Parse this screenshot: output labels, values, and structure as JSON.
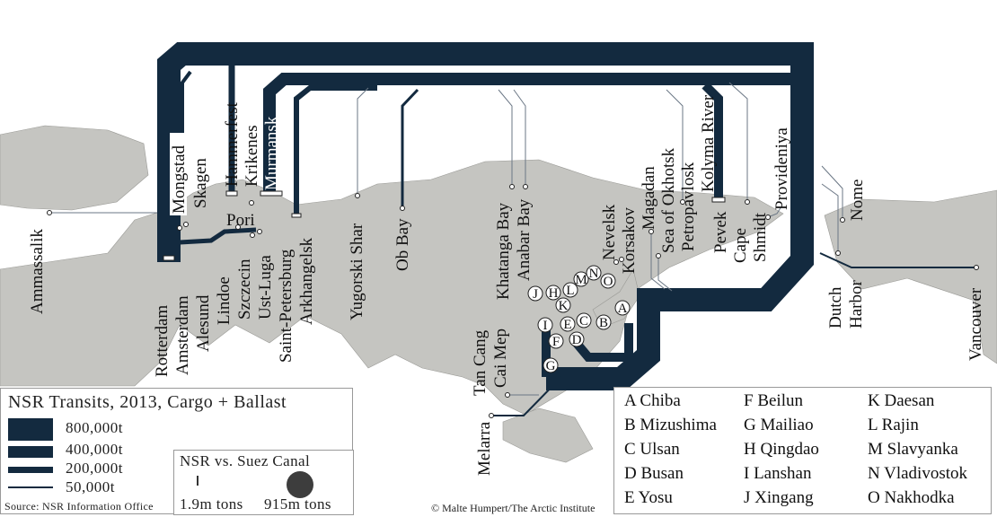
{
  "colors": {
    "flow": "#132a3f",
    "land": "#c5c5c1",
    "suez_circle": "#3d3d3d"
  },
  "ports": {
    "ammassalik": "Ammassalik",
    "rotterdam": "Rotterdam",
    "amsterdam": "Amsterdam",
    "alesund": "Alesund",
    "lindoe": "Lindoe",
    "szczecin": "Szczecin",
    "ust_luga": "Ust-Luga",
    "saint_petersburg": "Saint-Petersburg",
    "arkhangelsk": "Arkhangelsk",
    "pori": "Pori",
    "mongstad": "Mongstad",
    "skagen": "Skagen",
    "hammerfest": "Hammerfest",
    "krikenes": "Krikenes",
    "murmansk": "Murmansk",
    "yugorski_shar": "Yugorski Shar",
    "ob_bay": "Ob Bay",
    "khatanga_bay": "Khatanga Bay",
    "anabar_bay": "Anabar Bay",
    "tan_cang": "Tan Cang",
    "cai_mep": "Cai Mep",
    "melarra": "Melarra",
    "nevelsk": "Nevelsk",
    "korsakov": "Korsakov",
    "magadan": "Magadan",
    "sea_of_okhotsk": "Sea of Okhotsk",
    "petropavlosk": "Petropavlosk",
    "kolyma_river": "Kolyma River",
    "pevek": "Pevek",
    "cape": "Cape",
    "shmidt": "Shmidt",
    "provideniya": "Provideniya",
    "nome": "Nome",
    "dutch": "Dutch",
    "harbor": "Harbor",
    "vancouver": "Vancouver"
  },
  "markers": [
    "A",
    "B",
    "C",
    "D",
    "E",
    "F",
    "G",
    "H",
    "I",
    "J",
    "K",
    "L",
    "M",
    "N",
    "O"
  ],
  "legend": {
    "title": "NSR Transits, 2013, Cargo + Ballast",
    "entries": [
      "800,000t",
      "400,000t",
      "200,000t",
      "50,000t"
    ],
    "source": "Source: NSR Information Office",
    "comparison": {
      "title": "NSR vs. Suez Canal",
      "nsr_value": "1.9m tons",
      "suez_value": "915m tons"
    }
  },
  "key": [
    "A Chiba",
    "B Mizushima",
    "C Ulsan",
    "D Busan",
    "E Yosu",
    "F Beilun",
    "G Mailiao",
    "H Qingdao",
    "I Lanshan",
    "J Xingang",
    "K Daesan",
    "L Rajin",
    "M Slavyanka",
    "N Vladivostok",
    "O Nakhodka"
  ],
  "credit": "© Malte Humpert/The Arctic Institute"
}
